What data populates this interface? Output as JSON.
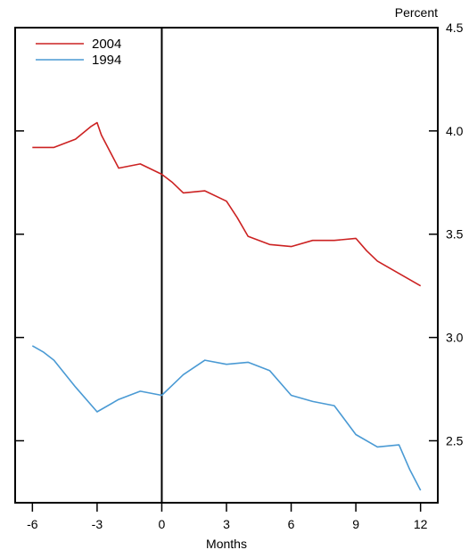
{
  "chart_data": {
    "type": "line",
    "ylabel": "Percent",
    "xlabel": "Months",
    "xlim": [
      -6.8,
      12.8
    ],
    "ylim": [
      2.2,
      4.5
    ],
    "xticks": [
      -6,
      -3,
      0,
      3,
      6,
      9,
      12
    ],
    "yticks": [
      2.5,
      3.0,
      3.5,
      4.0,
      4.5
    ],
    "ytick_labels": [
      "2.5",
      "3.0",
      "3.5",
      "4.0",
      "4.5"
    ],
    "xtick_labels": [
      "-6",
      "-3",
      "0",
      "3",
      "6",
      "9",
      "12"
    ],
    "vertical_line_x": 0,
    "legend_position": "top-left",
    "grid": false,
    "series": [
      {
        "name": "2004",
        "color": "#cc2222",
        "points": [
          [
            -6,
            3.92
          ],
          [
            -5,
            3.92
          ],
          [
            -4,
            3.96
          ],
          [
            -3.3,
            4.02
          ],
          [
            -3,
            4.04
          ],
          [
            -2.8,
            3.98
          ],
          [
            -2,
            3.82
          ],
          [
            -1,
            3.84
          ],
          [
            0,
            3.79
          ],
          [
            0.5,
            3.75
          ],
          [
            1,
            3.7
          ],
          [
            2,
            3.71
          ],
          [
            3,
            3.66
          ],
          [
            3.5,
            3.58
          ],
          [
            4,
            3.49
          ],
          [
            5,
            3.45
          ],
          [
            6,
            3.44
          ],
          [
            7,
            3.47
          ],
          [
            8,
            3.47
          ],
          [
            9,
            3.48
          ],
          [
            9.5,
            3.42
          ],
          [
            10,
            3.37
          ],
          [
            11,
            3.31
          ],
          [
            12,
            3.25
          ]
        ]
      },
      {
        "name": "1994",
        "color": "#4a9ad4",
        "points": [
          [
            -6,
            2.96
          ],
          [
            -5.5,
            2.93
          ],
          [
            -5,
            2.89
          ],
          [
            -4,
            2.76
          ],
          [
            -3,
            2.64
          ],
          [
            -2,
            2.7
          ],
          [
            -1,
            2.74
          ],
          [
            0,
            2.72
          ],
          [
            0.5,
            2.77
          ],
          [
            1,
            2.82
          ],
          [
            2,
            2.89
          ],
          [
            3,
            2.87
          ],
          [
            4,
            2.88
          ],
          [
            5,
            2.84
          ],
          [
            6,
            2.72
          ],
          [
            7,
            2.69
          ],
          [
            8,
            2.67
          ],
          [
            9,
            2.53
          ],
          [
            10,
            2.47
          ],
          [
            11,
            2.48
          ],
          [
            11.5,
            2.36
          ],
          [
            12,
            2.26
          ]
        ]
      }
    ]
  }
}
